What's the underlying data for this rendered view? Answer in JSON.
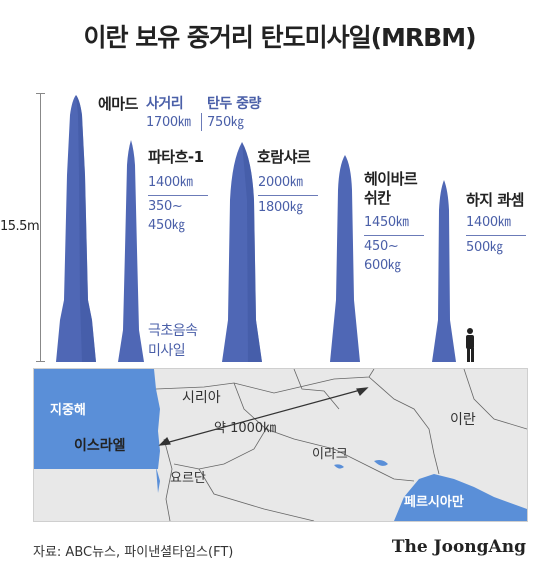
{
  "title": "이란 보유 중거리 탄도미사일(MRBM)",
  "scale_label": "15.5m",
  "headers": {
    "range": "사거리",
    "warhead": "탄두 중량"
  },
  "missiles": [
    {
      "name": "에마드",
      "range": "1700㎞",
      "warhead": "750㎏"
    },
    {
      "name": "파타흐-1",
      "range": "1400㎞",
      "warhead_line1": "350~",
      "warhead_line2": "450㎏",
      "note_line1": "극초음속",
      "note_line2": "미사일"
    },
    {
      "name": "호람샤르",
      "range": "2000㎞",
      "warhead": "1800㎏"
    },
    {
      "name_line1": "헤이바르",
      "name_line2": "쉬칸",
      "range": "1450㎞",
      "warhead_line1": "450~",
      "warhead_line2": "600㎏"
    },
    {
      "name": "하지 콰셈",
      "range": "1400㎞",
      "warhead": "500㎏"
    }
  ],
  "map": {
    "syria": "시리아",
    "iran": "이란",
    "mediterranean": "지중해",
    "israel": "이스라엘",
    "distance": "약 1000㎞",
    "iraq": "이라크",
    "jordan": "요르단",
    "persian_gulf": "페르시아만"
  },
  "source": "자료: ABC뉴스, 파이낸셜타임스(FT)",
  "brand": "The JoongAng",
  "colors": {
    "missile": "#4f67b5",
    "missile_dark": "#3e55a0",
    "water": "#5a8fd8",
    "land": "#e8e8e8",
    "accent": "#4a5fa8"
  }
}
